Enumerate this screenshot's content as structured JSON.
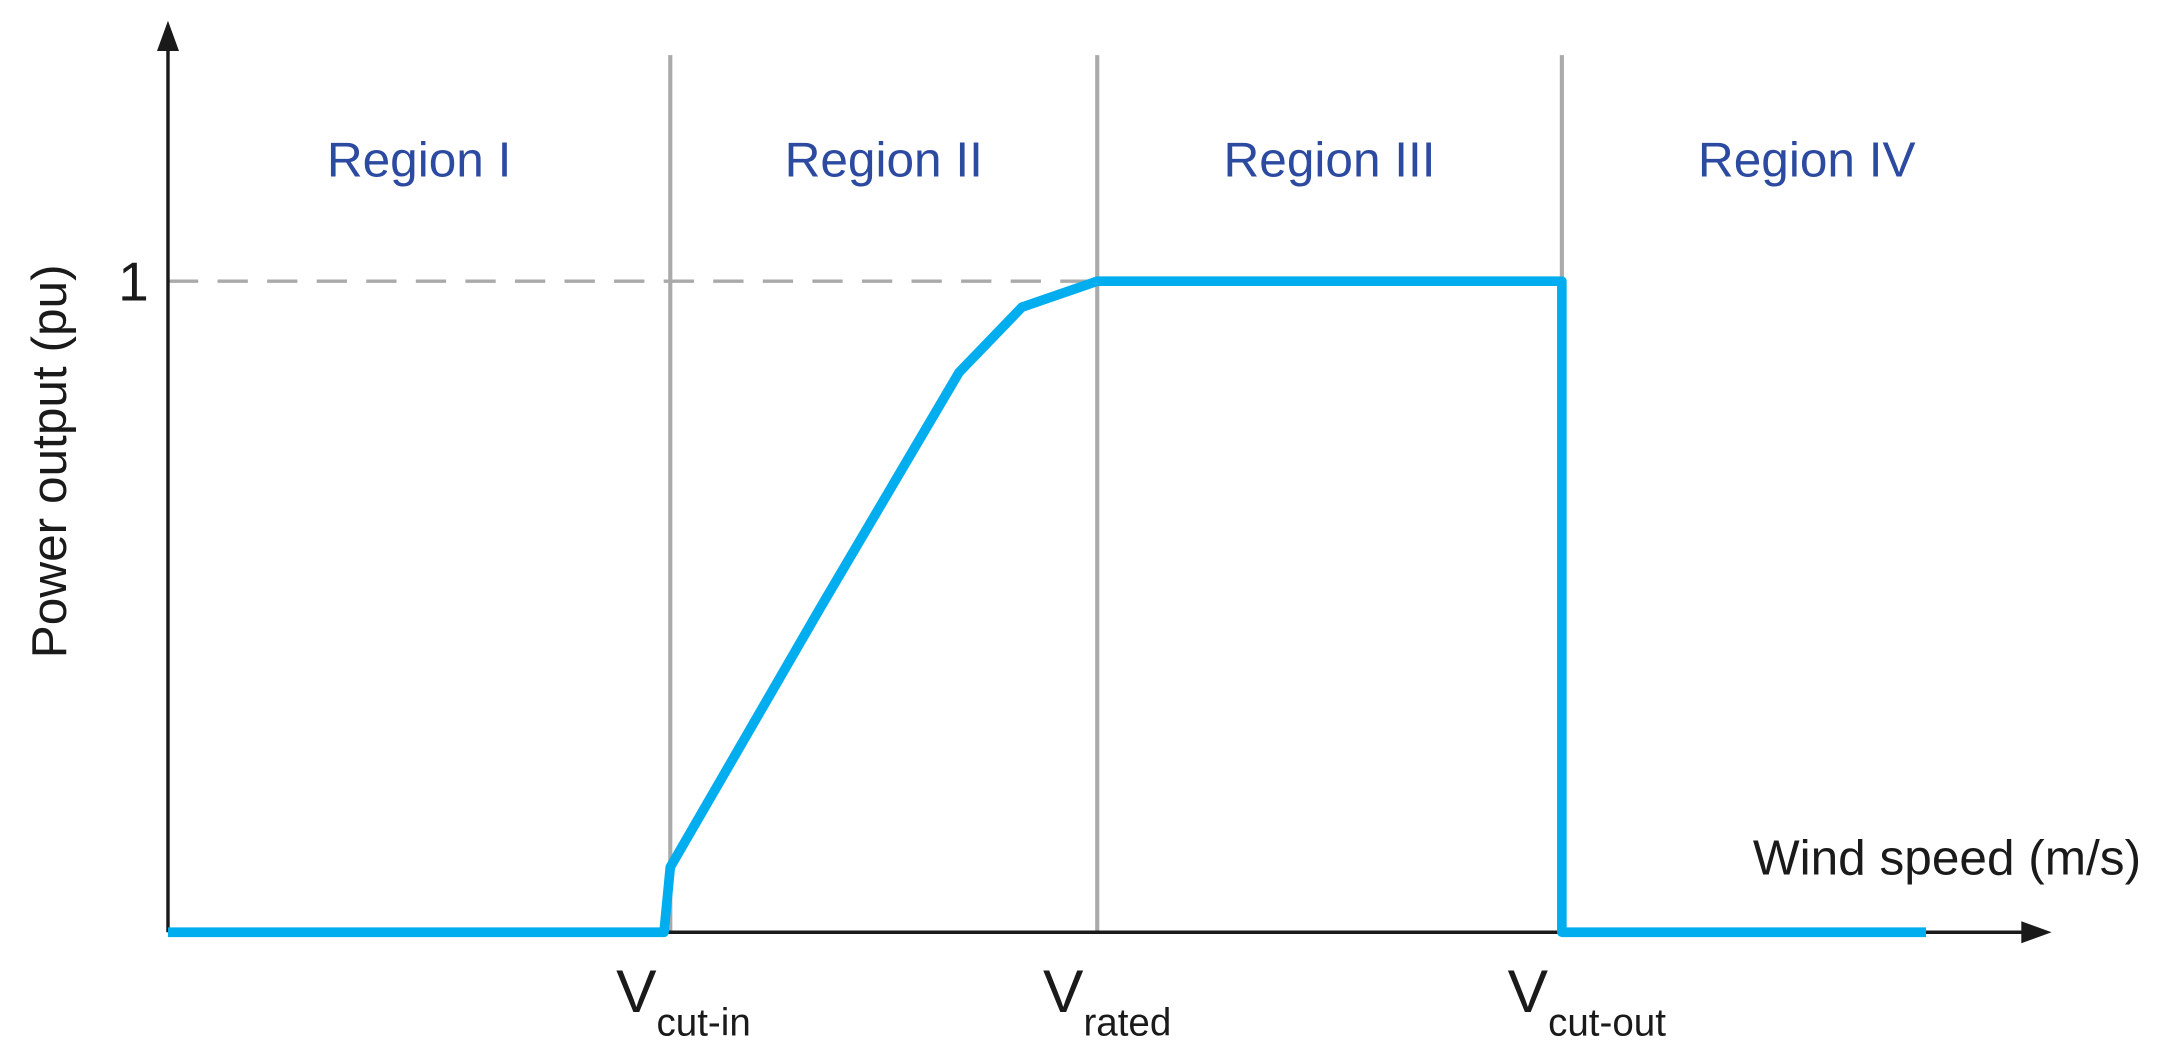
{
  "chart_data": {
    "type": "line",
    "y_label": "Power output (pu)",
    "x_label": "Wind speed (m/s)",
    "x": [
      0,
      3.95,
      4,
      5.2,
      6.3,
      6.8,
      7.4,
      11.1,
      11.1,
      14
    ],
    "values": [
      0,
      0,
      0.1,
      0.5,
      0.86,
      0.96,
      1,
      1,
      0,
      0
    ],
    "color": "#00aeef",
    "xlim": [
      0,
      15
    ],
    "ylim": [
      0,
      1.4
    ],
    "yticks": [
      1
    ],
    "grid": true,
    "markers": [
      {
        "x": 4,
        "label": "V",
        "sub": "cut-in"
      },
      {
        "x": 7.4,
        "label": "V",
        "sub": "rated"
      },
      {
        "x": 11.1,
        "label": "V",
        "sub": "cut-out"
      }
    ],
    "regions": [
      "Region I",
      "Region II",
      "Region III",
      "Region IV"
    ]
  }
}
